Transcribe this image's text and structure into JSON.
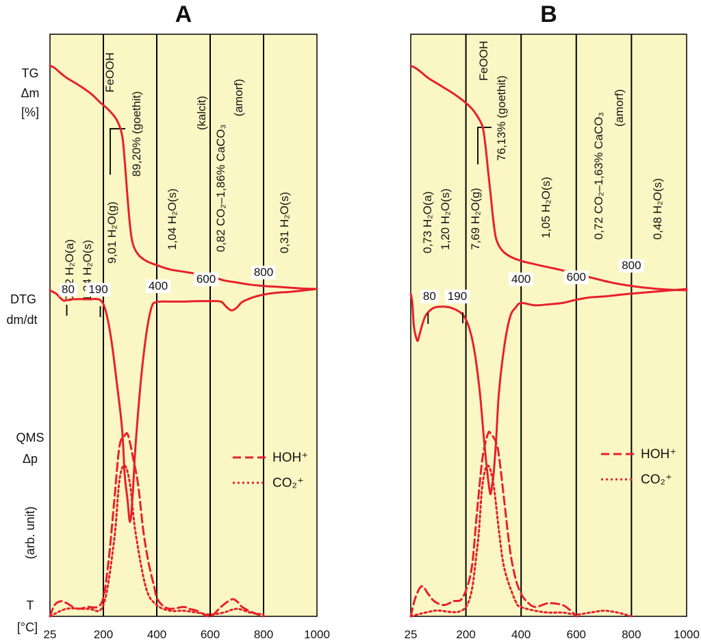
{
  "colors": {
    "panel_bg": "#fbf7c4",
    "curve": "#e8202a",
    "grid": "#000000"
  },
  "side_labels": {
    "tg": "TG",
    "dm": "Δm",
    "pct": "[%]",
    "dtg": "DTG",
    "dmdt": "dm/dt",
    "qms": "QMS",
    "dp": "Δp",
    "arb": "(arb. unit)",
    "t": "T",
    "unit": "[°C]"
  },
  "chart_data": [
    {
      "type": "line",
      "title": "A",
      "x_ticks": [
        "25",
        "200",
        "400",
        "600",
        "800",
        "1000"
      ],
      "inline_temps": [
        "80",
        "190",
        "400",
        "600",
        "800"
      ],
      "legend": [
        {
          "style": "dashed",
          "label": "HOH⁺"
        },
        {
          "style": "dotted",
          "label": "CO₂⁺"
        }
      ],
      "annotations": [
        {
          "lines": [
            "0,52 H₂O(a)",
            "1,24 H₂O(s)"
          ]
        },
        {
          "lines": [
            "9,01 H₂O(g)"
          ]
        },
        {
          "lines": [
            "FeOOH",
            "89,20%  (goethit)"
          ]
        },
        {
          "lines": [
            "1,04 H₂O(s)"
          ]
        },
        {
          "lines": [
            "(kalcit)",
            "0,82 CO₂–1,86%  CaCO₃",
            "(amorf)"
          ]
        },
        {
          "lines": [
            "0,31 H₂O(s)"
          ]
        }
      ],
      "series": [
        {
          "name": "TG",
          "x": [
            25,
            40,
            60,
            80,
            120,
            160,
            190,
            220,
            250,
            270,
            280,
            290,
            300,
            310,
            330,
            360,
            400,
            450,
            500,
            550,
            600,
            650,
            700,
            750,
            800,
            850,
            900,
            950,
            1000
          ],
          "y": [
            100,
            99.5,
            98.3,
            97.2,
            95.5,
            93.5,
            91.5,
            89.8,
            87.5,
            84,
            78,
            70,
            63,
            59,
            56.5,
            55,
            54,
            53,
            52.5,
            52,
            51.5,
            50.5,
            50,
            49.5,
            49.2,
            49,
            48.8,
            48.6,
            48.5
          ]
        },
        {
          "name": "DTG",
          "x": [
            25,
            45,
            60,
            70,
            80,
            100,
            150,
            190,
            210,
            230,
            250,
            270,
            280,
            290,
            300,
            310,
            320,
            340,
            360,
            380,
            400,
            450,
            500,
            550,
            600,
            640,
            660,
            680,
            700,
            720,
            760,
            800,
            850,
            900,
            1000
          ],
          "y": [
            -0.3,
            -1,
            -2,
            -2.5,
            -2.4,
            -2.2,
            -2.2,
            -2.4,
            -5,
            -11,
            -20,
            -30,
            -40,
            -45,
            -50,
            -44,
            -34,
            -20,
            -10,
            -4,
            -2.8,
            -2.7,
            -2.7,
            -2.6,
            -2.6,
            -2.7,
            -3.8,
            -4.6,
            -4,
            -2.8,
            -1.8,
            -1.2,
            -0.8,
            -0.6,
            0
          ]
        },
        {
          "name": "HOH⁺",
          "x": [
            25,
            40,
            60,
            80,
            100,
            120,
            150,
            180,
            200,
            220,
            240,
            260,
            280,
            290,
            300,
            310,
            330,
            350,
            370,
            390,
            400,
            420,
            450,
            500,
            520,
            550,
            600,
            640,
            680,
            700,
            720,
            760,
            800
          ],
          "y": [
            0,
            6,
            8,
            7,
            5,
            4,
            5,
            5,
            10,
            30,
            60,
            90,
            96,
            97,
            92,
            85,
            70,
            45,
            28,
            16,
            10,
            6,
            4,
            5,
            4,
            3,
            0,
            5,
            9,
            8,
            5,
            2,
            0
          ]
        },
        {
          "name": "CO₂⁺",
          "x": [
            25,
            80,
            150,
            200,
            240,
            260,
            280,
            300,
            320,
            360,
            400,
            450,
            500,
            550,
            600,
            650,
            700,
            750,
            800
          ],
          "y": [
            0,
            4,
            4,
            6,
            40,
            72,
            80,
            70,
            45,
            15,
            6,
            3,
            3,
            2,
            1,
            2,
            4,
            2,
            1
          ]
        }
      ]
    },
    {
      "type": "line",
      "title": "B",
      "x_ticks": [
        "25",
        "200",
        "400",
        "600",
        "800",
        "1000"
      ],
      "inline_temps": [
        "80",
        "190",
        "400",
        "600",
        "800"
      ],
      "legend": [
        {
          "style": "dashed",
          "label": "HOH⁺"
        },
        {
          "style": "dotted",
          "label": "CO₂⁺"
        }
      ],
      "annotations": [
        {
          "lines": [
            "0,73 H₂O(a)",
            "1,20 H₂O(s)"
          ]
        },
        {
          "lines": [
            "7,69 H₂O(g)"
          ]
        },
        {
          "lines": [
            "FeOOH",
            "76,13%  (goethit)"
          ]
        },
        {
          "lines": [
            "1,05 H₂O(s)"
          ]
        },
        {
          "lines": [
            "0,72 CO₂–1,63% CaCO₃",
            "(amorf)"
          ]
        },
        {
          "lines": [
            "0,48 H₂O(s)"
          ]
        }
      ],
      "series": [
        {
          "name": "TG",
          "x": [
            25,
            40,
            60,
            80,
            120,
            160,
            190,
            220,
            240,
            260,
            270,
            280,
            290,
            300,
            310,
            330,
            360,
            400,
            450,
            500,
            550,
            600,
            650,
            700,
            750,
            800,
            850,
            900,
            950,
            1000
          ],
          "y": [
            100,
            99.5,
            98.4,
            97.2,
            95.4,
            93.6,
            92,
            90.2,
            88.5,
            86,
            82,
            76,
            70,
            64,
            60,
            57.5,
            56,
            55,
            54.2,
            53.5,
            52.8,
            52,
            51.2,
            50.4,
            49.7,
            49.2,
            48.8,
            48.5,
            48.3,
            48.2
          ]
        },
        {
          "name": "DTG",
          "x": [
            25,
            30,
            35,
            45,
            50,
            60,
            70,
            80,
            100,
            130,
            160,
            190,
            210,
            230,
            250,
            265,
            275,
            285,
            290,
            295,
            300,
            310,
            320,
            340,
            360,
            380,
            400,
            450,
            500,
            550,
            600,
            650,
            700,
            800,
            900,
            1000
          ],
          "y": [
            -1,
            -3,
            -8,
            -11,
            -10.5,
            -8,
            -6,
            -5,
            -4,
            -3.8,
            -4.2,
            -5.5,
            -8,
            -13,
            -22,
            -32,
            -38,
            -43,
            -44,
            -42,
            -40,
            -32,
            -22,
            -12,
            -6,
            -4,
            -3,
            -3.5,
            -3.3,
            -3,
            -2.3,
            -1.8,
            -1.6,
            -1,
            -0.5,
            0
          ]
        },
        {
          "name": "HOH⁺",
          "x": [
            25,
            40,
            60,
            80,
            100,
            130,
            160,
            190,
            220,
            240,
            260,
            280,
            290,
            300,
            310,
            320,
            340,
            360,
            380,
            400,
            420,
            450,
            500,
            550,
            580,
            600
          ],
          "y": [
            0,
            10,
            16,
            12,
            8,
            6,
            8,
            10,
            25,
            55,
            84,
            97,
            97,
            95,
            92,
            85,
            60,
            35,
            20,
            12,
            8,
            5,
            7,
            6,
            3,
            0
          ]
        },
        {
          "name": "CO₂⁺",
          "x": [
            25,
            100,
            200,
            240,
            260,
            280,
            300,
            320,
            340,
            380,
            400,
            450,
            500,
            550,
            600,
            650,
            700,
            750,
            800
          ],
          "y": [
            0,
            3,
            5,
            35,
            70,
            80,
            70,
            45,
            25,
            8,
            5,
            3,
            2,
            2,
            1,
            2,
            3,
            2,
            0
          ]
        }
      ]
    }
  ]
}
